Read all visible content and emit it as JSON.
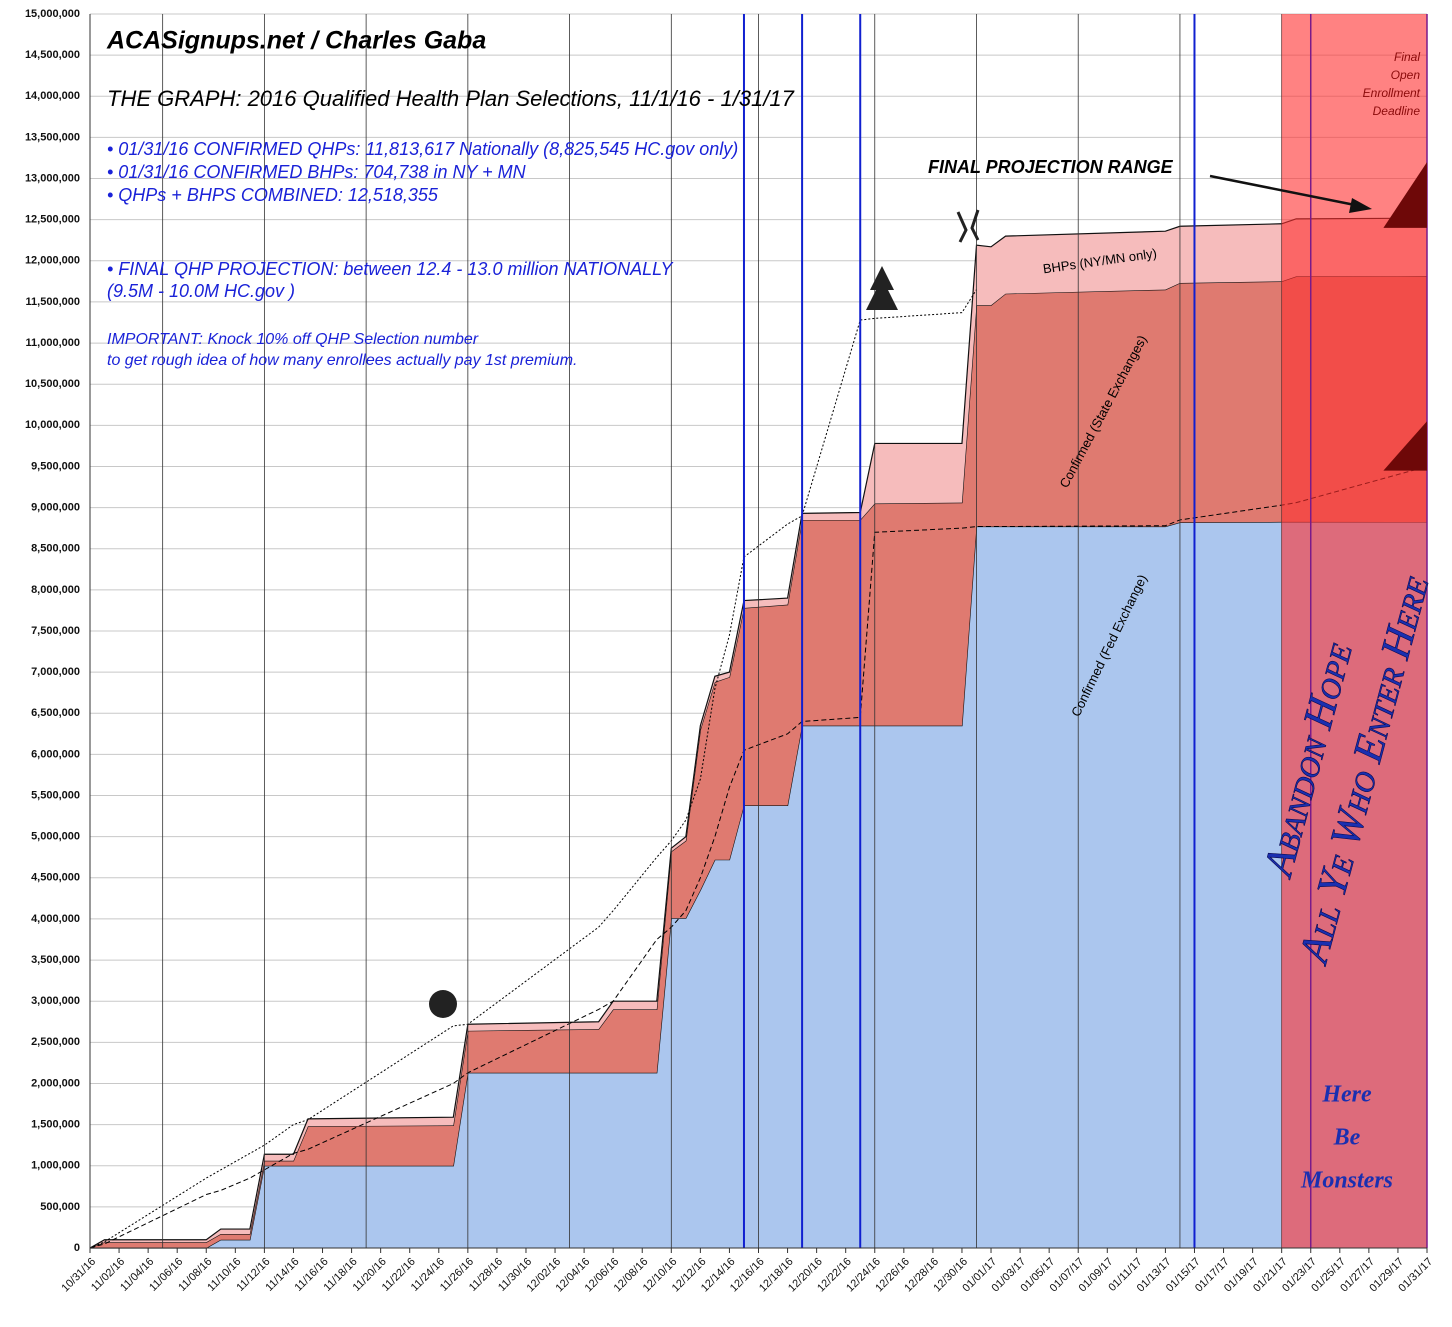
{
  "chart_data": {
    "type": "area",
    "annotations": [
      "ACASignups.net / Charles Gaba",
      "THE GRAPH: 2016 Qualified Health Plan Selections, 11/1/16 - 1/31/17",
      "• 01/31/16 CONFIRMED QHPs: 11,813,617 Nationally (8,825,545 HC.gov only)",
      "• 01/31/16 CONFIRMED BHPs: 704,738 in NY + MN",
      "• QHPs + BHPS COMBINED: 12,518,355",
      "• FINAL QHP PROJECTION: between 12.4 - 13.0 million NATIONALLY",
      "(9.5M - 10.0M HC.gov  )",
      "IMPORTANT: Knock 10% off QHP Selection number",
      "to get rough idea of how many enrollees actually pay 1st premium.",
      "FINAL PROJECTION RANGE",
      "Final",
      "Open",
      "Enrollment",
      "Deadline",
      "BHPs (NY/MN only)",
      "Confirmed (State Exchanges)",
      "Confirmed (Fed Exchange)",
      "Abandon Hope",
      "All Ye Who Enter Here",
      "Here",
      "Be",
      "Monsters"
    ],
    "x": [
      "10/31/16",
      "11/01/16",
      "11/08/16",
      "11/09/16",
      "11/11/16",
      "11/12/16",
      "11/14/16",
      "11/15/16",
      "11/25/16",
      "11/26/16",
      "12/05/16",
      "12/06/16",
      "12/09/16",
      "12/10/16",
      "12/11/16",
      "12/12/16",
      "12/13/16",
      "12/14/16",
      "12/15/16",
      "12/18/16",
      "12/19/16",
      "12/23/16",
      "12/24/16",
      "12/30/16",
      "12/31/16",
      "01/01/17",
      "01/02/17",
      "01/13/17",
      "01/14/17",
      "01/21/17",
      "01/22/17",
      "01/31/17"
    ],
    "series": [
      {
        "kind": "area",
        "color": "#abc6ee",
        "values": [
          0,
          0,
          0,
          100000,
          100000,
          1000000,
          1000000,
          1000000,
          1000000,
          2130000,
          2130000,
          2130000,
          2130000,
          4010000,
          4010000,
          4350000,
          4720000,
          4720000,
          5380000,
          5380000,
          6350000,
          6350000,
          6350000,
          6350000,
          8770000,
          8770000,
          8770000,
          8770000,
          8820000,
          8826000,
          8826000,
          8825545
        ]
      },
      {
        "kind": "area",
        "color": "#df7a70",
        "values": [
          0,
          70000,
          70000,
          70000,
          70000,
          60000,
          60000,
          480000,
          490000,
          510000,
          530000,
          770000,
          770000,
          810000,
          940000,
          1950000,
          2160000,
          2220000,
          2400000,
          2440000,
          2500000,
          2500000,
          2700000,
          2710000,
          2690000,
          2690000,
          2830000,
          2880000,
          2910000,
          2924000,
          2984000,
          2988072
        ]
      },
      {
        "kind": "area",
        "color": "#f6bcbc",
        "values": [
          0,
          30000,
          30000,
          60000,
          60000,
          80000,
          80000,
          90000,
          100000,
          80000,
          90000,
          100000,
          100000,
          40000,
          50000,
          50000,
          70000,
          60000,
          90000,
          80000,
          80000,
          90000,
          730000,
          720000,
          730000,
          710000,
          700000,
          710000,
          690000,
          700000,
          700000,
          704738
        ]
      },
      {
        "kind": "line",
        "dash": "2,2",
        "color": "#000000",
        "values": [
          0,
          75000,
          850000,
          950000,
          1150000,
          1250000,
          1500000,
          1560000,
          2700000,
          2720000,
          3900000,
          4100000,
          4750000,
          4950000,
          5200000,
          5700000,
          6800000,
          7450000,
          8400000,
          8800000,
          8900000,
          11280000,
          11300000,
          11370000,
          11650000,
          null,
          null,
          null,
          null,
          null,
          null,
          null
        ]
      },
      {
        "kind": "line",
        "dash": "5,3",
        "color": "#000000",
        "values": [
          0,
          50000,
          650000,
          700000,
          850000,
          950000,
          1150000,
          1200000,
          2000000,
          2130000,
          2900000,
          3000000,
          3750000,
          3900000,
          4100000,
          4500000,
          5000000,
          5600000,
          6050000,
          6250000,
          6400000,
          6450000,
          8700000,
          8750000,
          8770000,
          8770000,
          8770000,
          8780000,
          8850000,
          9030000,
          9060000,
          9500000
        ]
      }
    ],
    "xlim": [
      "10/31/16",
      "01/31/17"
    ],
    "xticks": [
      "10/31/16",
      "11/02/16",
      "11/04/16",
      "11/06/16",
      "11/08/16",
      "11/10/16",
      "11/12/16",
      "11/14/16",
      "11/16/16",
      "11/18/16",
      "11/20/16",
      "11/22/16",
      "11/24/16",
      "11/26/16",
      "11/28/16",
      "11/30/16",
      "12/02/16",
      "12/04/16",
      "12/06/16",
      "12/08/16",
      "12/10/16",
      "12/12/16",
      "12/14/16",
      "12/16/16",
      "12/18/16",
      "12/20/16",
      "12/22/16",
      "12/24/16",
      "12/26/16",
      "12/28/16",
      "12/30/16",
      "01/01/17",
      "01/03/17",
      "01/05/17",
      "01/07/17",
      "01/09/17",
      "01/11/17",
      "01/13/17",
      "01/15/17",
      "01/17/17",
      "01/19/17",
      "01/21/17",
      "01/23/17",
      "01/25/17",
      "01/27/17",
      "01/29/17",
      "01/31/17"
    ],
    "ylim": [
      0,
      15000000
    ],
    "yticks": [
      0,
      {
        "value": 500000,
        "label": "500,000"
      },
      {
        "value": 1000000,
        "label": "1,000,000"
      },
      {
        "value": 1500000,
        "label": "1,500,000"
      },
      {
        "value": 2000000,
        "label": "2,000,000"
      },
      {
        "value": 2500000,
        "label": "2,500,000"
      },
      {
        "value": 3000000,
        "label": "3,000,000"
      },
      {
        "value": 3500000,
        "label": "3,500,000"
      },
      {
        "value": 4000000,
        "label": "4,000,000"
      },
      {
        "value": 4500000,
        "label": "4,500,000"
      },
      {
        "value": 5000000,
        "label": "5,000,000"
      },
      {
        "value": 5500000,
        "label": "5,500,000"
      },
      {
        "value": 6000000,
        "label": "6,000,000"
      },
      {
        "value": 6500000,
        "label": "6,500,000"
      },
      {
        "value": 7000000,
        "label": "7,000,000"
      },
      {
        "value": 7500000,
        "label": "7,500,000"
      },
      {
        "value": 8000000,
        "label": "8,000,000"
      },
      {
        "value": 8500000,
        "label": "8,500,000"
      },
      {
        "value": 9000000,
        "label": "9,000,000"
      },
      {
        "value": 9500000,
        "label": "9,500,000"
      },
      {
        "value": 10000000,
        "label": "10,000,000"
      },
      {
        "value": 10500000,
        "label": "10,500,000"
      },
      {
        "value": 11000000,
        "label": "11,000,000"
      },
      {
        "value": 11500000,
        "label": "11,500,000"
      },
      {
        "value": 12000000,
        "label": "12,000,000"
      },
      {
        "value": 12500000,
        "label": "12,500,000"
      },
      {
        "value": 13000000,
        "label": "13,000,000"
      },
      {
        "value": 13500000,
        "label": "13,500,000"
      },
      {
        "value": 14000000,
        "label": "14,000,000"
      },
      {
        "value": 14500000,
        "label": "14,500,000"
      },
      {
        "value": 15000000,
        "label": "15,000,000"
      }
    ],
    "grid": true,
    "week_lines": [
      "11/05/16",
      "11/12/16",
      "11/19/16",
      "11/26/16",
      "12/03/16",
      "12/10/16",
      "12/16/16",
      "12/24/16",
      "12/31/16",
      "01/07/17",
      "01/14/17",
      "01/21/17"
    ],
    "week_line_color": "#333333",
    "marker_lines": [
      "12/15/16",
      "12/19/16",
      "12/23/16",
      "01/15/17"
    ],
    "marker_line_color": "#1020d0",
    "deadline_lines": [
      "01/23/17",
      "01/31/17"
    ],
    "deadline_line_color": "#7a1a8a",
    "shaded_region": {
      "from": "01/21/17",
      "to": "01/31/17",
      "color": "#ff2e2e"
    },
    "projection_bands": [
      {
        "x": [
          "01/28/17",
          "01/31/17"
        ],
        "low": [
          12400000,
          12400000
        ],
        "high": [
          12400000,
          13200000
        ],
        "color": "#6e0808"
      },
      {
        "x": [
          "01/28/17",
          "01/31/17"
        ],
        "low": [
          9450000,
          9450000
        ],
        "high": [
          9450000,
          10050000
        ],
        "color": "#6e0808"
      }
    ]
  }
}
